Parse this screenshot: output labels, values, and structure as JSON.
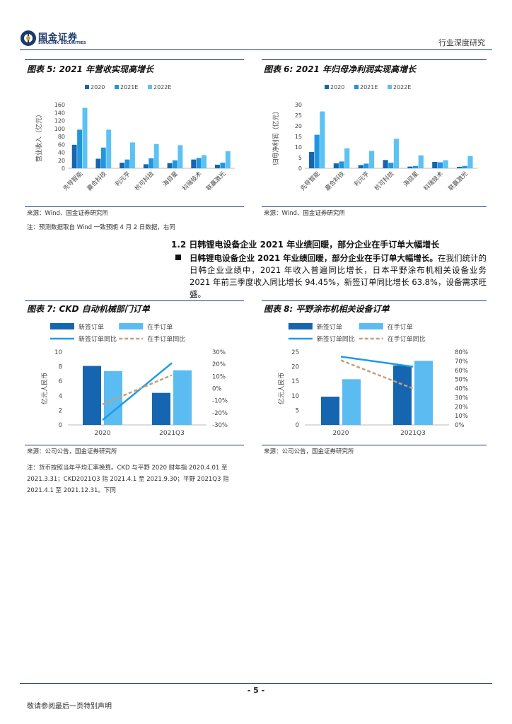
{
  "header": {
    "logo_cn": "国金证券",
    "logo_en": "SINOLINK SECURITIES",
    "report_type": "行业深度研究"
  },
  "figures": {
    "fig5": {
      "title": "图表 5: 2021 年营收实现高增长",
      "source": "来源：Wind、国金证券研究所"
    },
    "fig6": {
      "title": "图表 6: 2021 年归母净利润实现高增长",
      "source": "来源：Wind、国金证券研究所"
    },
    "fig7": {
      "title": "图表 7: CKD 自动机械部门订单",
      "source": "来源：公司公告，国金证券研究所"
    },
    "fig8": {
      "title": "图表 8: 平野涂布机相关设备订单",
      "source": "来源：公司公告，国金证券研究所"
    }
  },
  "note1": "注：预测数据取自 Wind 一致预期 4 月 2 日数据，右同",
  "section": {
    "title": "1.2 日韩锂电设备企业 2021 年业绩回暖，部分企业在手订单大幅增长",
    "bullet_bold": "日韩锂电设备企业 2021 年业绩回暖，部分企业在手订单大幅增长。",
    "bullet_text": "在我们统计的日韩企业业绩中，2021 年收入普遍同比增长，日本平野涂布机相关设备业务 2021 年前三季度收入同比增长 94.45%，新签订单同比增长 63.8%，设备需求旺盛。"
  },
  "note2": "注：货币按照当年平均汇率换算。CKD 与平野 2020 财年指 2020.4.01 至 2021.3.31；CKD2021Q3 指 2021.4.1 至 2021.9.30；平野 2021Q3 指 2021.4.1 至 2021.12.31。下同",
  "page_number": "- 5 -",
  "footer": "敬请参阅最后一页特别声明",
  "colors": {
    "series_2020": "#1565b0",
    "series_2021E": "#2196e0",
    "series_2022E": "#5bc2f2",
    "new_orders": "#1565b0",
    "backlog": "#5bbcf2",
    "new_orders_yoy": "#1e9be6",
    "backlog_yoy": "#c4a07a",
    "brand": "#1b3a6b"
  },
  "chart_data": [
    {
      "id": "fig5",
      "type": "bar",
      "ylabel": "营业收入（亿元）",
      "ylim": [
        0,
        160
      ],
      "yticks": [
        0,
        20,
        40,
        60,
        80,
        100,
        120,
        140,
        160
      ],
      "categories": [
        "先导智能",
        "赢合科技",
        "利元亨",
        "杭可科技",
        "海目星",
        "科瑞技术",
        "联赢激光"
      ],
      "series": [
        {
          "name": "2020",
          "values": [
            59,
            24,
            14,
            10,
            13,
            22,
            9
          ]
        },
        {
          "name": "2021E",
          "values": [
            97,
            52,
            22,
            25,
            20,
            26,
            14
          ]
        },
        {
          "name": "2022E",
          "values": [
            152,
            97,
            65,
            61,
            58,
            33,
            43
          ]
        }
      ],
      "legend": "top"
    },
    {
      "id": "fig6",
      "type": "bar",
      "ylabel": "归母净利润（亿元）",
      "ylim": [
        0,
        30
      ],
      "yticks": [
        0,
        5,
        10,
        15,
        20,
        25,
        30
      ],
      "categories": [
        "先导智能",
        "赢合科技",
        "利元亨",
        "杭可科技",
        "海目星",
        "科瑞技术",
        "联赢激光"
      ],
      "series": [
        {
          "name": "2020",
          "values": [
            7.7,
            2.3,
            1.5,
            3.9,
            0.8,
            3.0,
            0.7
          ]
        },
        {
          "name": "2021E",
          "values": [
            15.8,
            3.2,
            2.2,
            2.6,
            1.1,
            2.8,
            1.1
          ]
        },
        {
          "name": "2022E",
          "values": [
            26.8,
            9.4,
            8.2,
            13.9,
            6.1,
            3.8,
            5.8
          ]
        }
      ],
      "legend": "top"
    },
    {
      "id": "fig7",
      "type": "bar",
      "ylabel": "亿元人民币",
      "ylim": [
        0,
        10
      ],
      "yticks": [
        0,
        2,
        4,
        6,
        8,
        10
      ],
      "y2lim": [
        -30,
        30
      ],
      "y2ticks": [
        "-30%",
        "-20%",
        "-10%",
        "0%",
        "10%",
        "20%",
        "30%"
      ],
      "categories": [
        "2020",
        "2021Q3"
      ],
      "series": [
        {
          "name": "新签订单",
          "axis": "left",
          "kind": "bar",
          "values": [
            8.1,
            4.4
          ]
        },
        {
          "name": "在手订单",
          "axis": "right_none",
          "kind": "bar",
          "values": [
            7.4,
            7.5
          ]
        },
        {
          "name": "新签订单同比",
          "axis": "right",
          "kind": "line",
          "values": [
            -26,
            21
          ]
        },
        {
          "name": "在手订单同比",
          "axis": "right",
          "kind": "dashed",
          "values": [
            -13,
            11
          ]
        }
      ],
      "legend": "top"
    },
    {
      "id": "fig8",
      "type": "bar",
      "ylabel": "亿元人民币",
      "ylim": [
        0,
        25
      ],
      "yticks": [
        0,
        5,
        10,
        15,
        20,
        25
      ],
      "y2lim": [
        0,
        80
      ],
      "y2ticks": [
        "0%",
        "10%",
        "20%",
        "30%",
        "40%",
        "50%",
        "60%",
        "70%",
        "80%"
      ],
      "categories": [
        "2020",
        "2021Q3"
      ],
      "series": [
        {
          "name": "新签订单",
          "axis": "left",
          "kind": "bar",
          "values": [
            9.7,
            20.4
          ]
        },
        {
          "name": "在手订单",
          "axis": "left",
          "kind": "bar",
          "values": [
            15.7,
            22.0
          ]
        },
        {
          "name": "新签订单同比",
          "axis": "right",
          "kind": "line",
          "values": [
            75,
            64
          ]
        },
        {
          "name": "在手订单同比",
          "axis": "right",
          "kind": "dashed",
          "values": [
            71,
            40
          ]
        }
      ],
      "legend": "top"
    }
  ]
}
